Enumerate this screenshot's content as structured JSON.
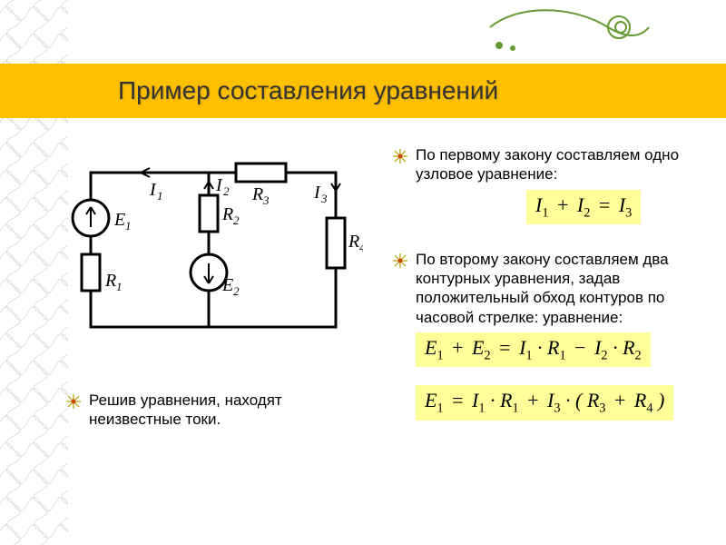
{
  "colors": {
    "title_bg": "#ffc000",
    "eq_bg": "#ffff99",
    "spiral": "#669933",
    "pattern_line": "#888888"
  },
  "title": "Пример составления уравнений",
  "bullets": {
    "b1": "По первому закону составляем одно узловое уравнение:",
    "b2": "По второму закону составляем два контурных уравнения, задав положительный обход контуров по часовой стрелке: уравнение:",
    "solve": "Решив уравнения, находят неизвестные токи."
  },
  "circuit": {
    "labels": {
      "I1": "I₁",
      "I2": "I₂",
      "I3": "I₃",
      "E1": "E₁",
      "E2": "E₂",
      "R1": "R₁",
      "R2": "R₂",
      "R3": "R₃",
      "R4": "R₄"
    }
  },
  "equations": {
    "eq1_html": "I<sub>1</sub> <span class='op'>+</span> I<sub>2</sub> <span class='op'>=</span> I<sub>3</sub>",
    "eq2_html": "E<sub>1</sub> <span class='op'>+</span> E<sub>2</sub> <span class='op'>=</span> I<sub>1</sub> · R<sub>1</sub> <span class='op'>−</span> I<sub>2</sub> · R<sub>2</sub>",
    "eq3_html": "E<sub>1</sub> <span class='op'>=</span> I<sub>1</sub> · R<sub>1</sub> <span class='op'>+</span> I<sub>3</sub> · ( R<sub>3</sub> <span class='op'>+</span> R<sub>4</sub> )"
  },
  "fonts": {
    "title_size": 28,
    "body_size": 17,
    "eq_size": 22
  }
}
